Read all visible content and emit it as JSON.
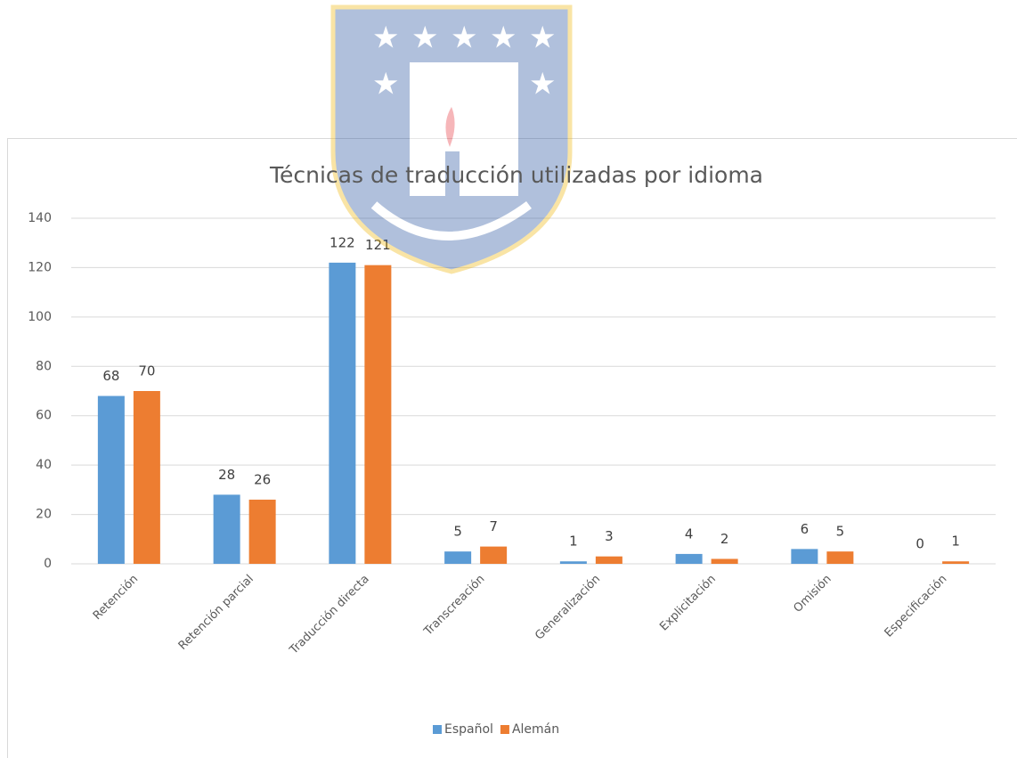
{
  "chart_data": {
    "type": "bar",
    "title": "Técnicas de traducción utilizadas por idioma",
    "categories": [
      "Retención",
      "Retención parcial",
      "Traducción directa",
      "Transcreación",
      "Generalización",
      "Explicitación",
      "Omisión",
      "Especificación"
    ],
    "series": [
      {
        "name": "Español",
        "color": "#5b9bd5",
        "values": [
          68,
          28,
          122,
          5,
          1,
          4,
          6,
          0
        ]
      },
      {
        "name": "Alemán",
        "color": "#ed7d31",
        "values": [
          70,
          26,
          121,
          7,
          3,
          2,
          5,
          1
        ]
      }
    ],
    "ylim": [
      0,
      140
    ],
    "yticks": [
      0,
      20,
      40,
      60,
      80,
      100,
      120,
      140
    ],
    "grid": true,
    "legend": "bottom"
  }
}
